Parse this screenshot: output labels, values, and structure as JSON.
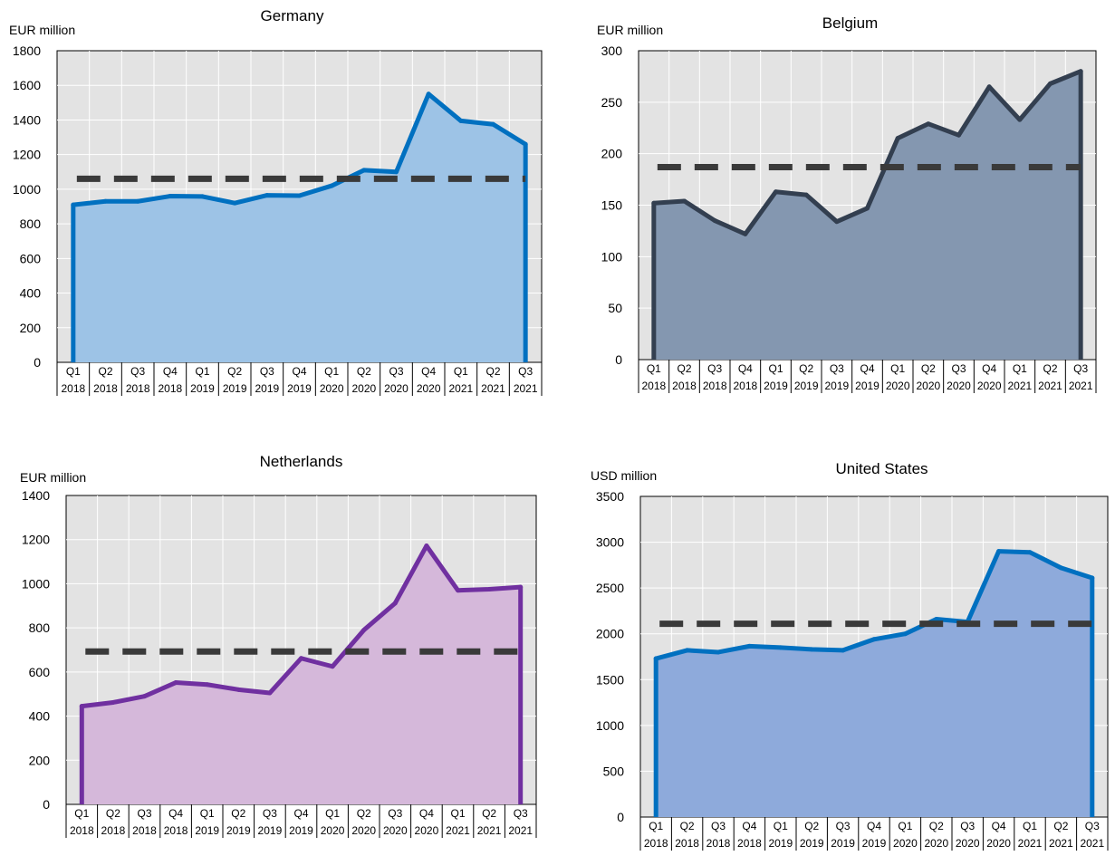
{
  "chart_data": [
    {
      "type": "area",
      "title": "Germany",
      "ylabel": "EUR million",
      "ylim": [
        0,
        1800
      ],
      "yticks": [
        0,
        200,
        400,
        600,
        800,
        1000,
        1200,
        1400,
        1600,
        1800
      ],
      "categories": [
        "Q1 2018",
        "Q2 2018",
        "Q3 2018",
        "Q4 2018",
        "Q1 2019",
        "Q2 2019",
        "Q3 2019",
        "Q4 2019",
        "Q1 2020",
        "Q2 2020",
        "Q3 2020",
        "Q4 2020",
        "Q1 2021",
        "Q2 2021",
        "Q3 2021"
      ],
      "quarter_labels": [
        "Q1",
        "Q2",
        "Q3",
        "Q4",
        "Q1",
        "Q2",
        "Q3",
        "Q4",
        "Q1",
        "Q2",
        "Q3",
        "Q4",
        "Q1",
        "Q2",
        "Q3"
      ],
      "year_labels": [
        "2018",
        "2018",
        "2018",
        "2018",
        "2019",
        "2019",
        "2019",
        "2019",
        "2020",
        "2020",
        "2020",
        "2020",
        "2021",
        "2021",
        "2021"
      ],
      "values": [
        910,
        930,
        930,
        960,
        958,
        920,
        965,
        963,
        1020,
        1110,
        1100,
        1550,
        1395,
        1375,
        1260
      ],
      "reference_value": 1060,
      "line_color": "#0070c0",
      "fill_color": "#9dc3e6",
      "grid": true,
      "legend": "none"
    },
    {
      "type": "area",
      "title": "Belgium",
      "ylabel": "EUR million",
      "ylim": [
        0,
        300
      ],
      "yticks": [
        0,
        50,
        100,
        150,
        200,
        250,
        300
      ],
      "categories": [
        "Q1 2018",
        "Q2 2018",
        "Q3 2018",
        "Q4 2018",
        "Q1 2019",
        "Q2 2019",
        "Q3 2019",
        "Q4 2019",
        "Q1 2020",
        "Q2 2020",
        "Q3 2020",
        "Q4 2020",
        "Q1 2021",
        "Q2 2021",
        "Q3 2021"
      ],
      "quarter_labels": [
        "Q1",
        "Q2",
        "Q3",
        "Q4",
        "Q1",
        "Q2",
        "Q3",
        "Q4",
        "Q1",
        "Q2",
        "Q3",
        "Q4",
        "Q1",
        "Q2",
        "Q3"
      ],
      "year_labels": [
        "2018",
        "2018",
        "2018",
        "2018",
        "2019",
        "2019",
        "2019",
        "2019",
        "2020",
        "2020",
        "2020",
        "2020",
        "2021",
        "2021",
        "2021"
      ],
      "values": [
        152,
        154,
        135,
        122,
        163,
        160,
        134,
        147,
        215,
        229,
        218,
        265,
        233,
        268,
        280
      ],
      "reference_value": 187,
      "line_color": "#333f50",
      "fill_color": "#8497b0",
      "grid": true,
      "legend": "none"
    },
    {
      "type": "area",
      "title": "Netherlands",
      "ylabel": "EUR million",
      "ylim": [
        0,
        1400
      ],
      "yticks": [
        0,
        200,
        400,
        600,
        800,
        1000,
        1200,
        1400
      ],
      "categories": [
        "Q1 2018",
        "Q2 2018",
        "Q3 2018",
        "Q4 2018",
        "Q1 2019",
        "Q2 2019",
        "Q3 2019",
        "Q4 2019",
        "Q1 2020",
        "Q2 2020",
        "Q3 2020",
        "Q4 2020",
        "Q1 2021",
        "Q2 2021",
        "Q3 2021"
      ],
      "quarter_labels": [
        "Q1",
        "Q2",
        "Q3",
        "Q4",
        "Q1",
        "Q2",
        "Q3",
        "Q4",
        "Q1",
        "Q2",
        "Q3",
        "Q4",
        "Q1",
        "Q2",
        "Q3"
      ],
      "year_labels": [
        "2018",
        "2018",
        "2018",
        "2018",
        "2019",
        "2019",
        "2019",
        "2019",
        "2020",
        "2020",
        "2020",
        "2020",
        "2021",
        "2021",
        "2021"
      ],
      "values": [
        445,
        462,
        490,
        552,
        543,
        520,
        505,
        662,
        625,
        790,
        912,
        1172,
        970,
        975,
        985
      ],
      "reference_value": 693,
      "line_color": "#7030a0",
      "fill_color": "#d5b8da",
      "grid": true,
      "legend": "none"
    },
    {
      "type": "area",
      "title": "United States",
      "ylabel": "USD million",
      "ylim": [
        0,
        3500
      ],
      "yticks": [
        0,
        500,
        1000,
        1500,
        2000,
        2500,
        3000,
        3500
      ],
      "categories": [
        "Q1 2018",
        "Q2 2018",
        "Q3 2018",
        "Q4 2018",
        "Q1 2019",
        "Q2 2019",
        "Q3 2019",
        "Q4 2019",
        "Q1 2020",
        "Q2 2020",
        "Q3 2020",
        "Q4 2020",
        "Q1 2021",
        "Q2 2021",
        "Q3 2021"
      ],
      "quarter_labels": [
        "Q1",
        "Q2",
        "Q3",
        "Q4",
        "Q1",
        "Q2",
        "Q3",
        "Q4",
        "Q1",
        "Q2",
        "Q3",
        "Q4",
        "Q1",
        "Q2",
        "Q3"
      ],
      "year_labels": [
        "2018",
        "2018",
        "2018",
        "2018",
        "2019",
        "2019",
        "2019",
        "2019",
        "2020",
        "2020",
        "2020",
        "2020",
        "2021",
        "2021",
        "2021"
      ],
      "values": [
        1730,
        1820,
        1800,
        1865,
        1850,
        1830,
        1820,
        1940,
        2000,
        2160,
        2130,
        2900,
        2890,
        2720,
        2610
      ],
      "reference_value": 2110,
      "line_color": "#0070c0",
      "fill_color": "#8eaadb",
      "grid": true,
      "legend": "none"
    }
  ]
}
